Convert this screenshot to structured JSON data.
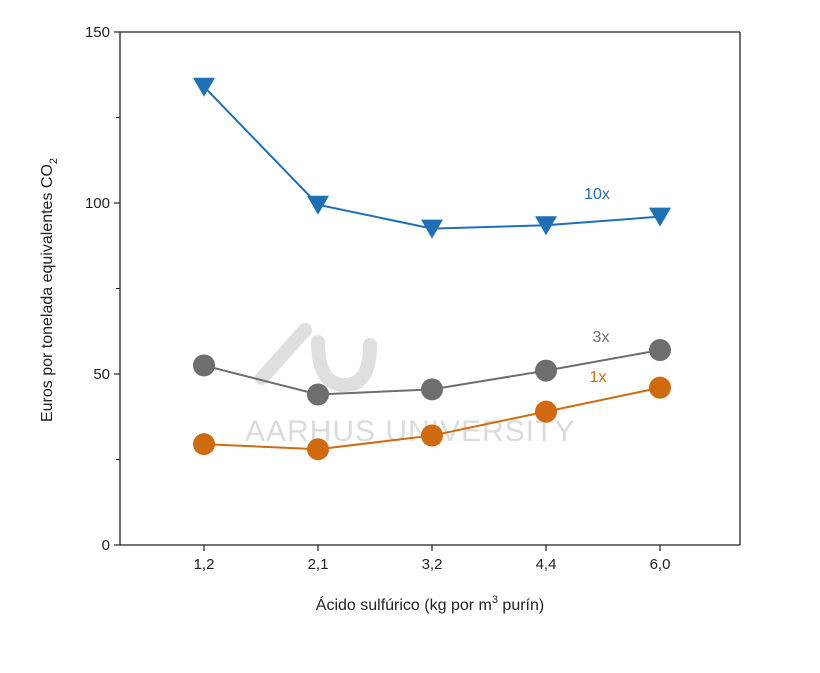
{
  "chart_data": {
    "type": "line",
    "categories": [
      "1,2",
      "2,1",
      "3,2",
      "4,4",
      "6,0"
    ],
    "series": [
      {
        "name": "10x",
        "values": [
          134,
          99.5,
          92.5,
          93.5,
          96
        ],
        "color": "#1f6fb4",
        "marker": "triangle-down"
      },
      {
        "name": "3x",
        "values": [
          52.5,
          44,
          45.5,
          51,
          57
        ],
        "color": "#6e6e6e",
        "marker": "circle"
      },
      {
        "name": "1x",
        "values": [
          29.5,
          28,
          32,
          39,
          46
        ],
        "color": "#d06a10",
        "marker": "circle"
      }
    ],
    "ylim": [
      0,
      150
    ],
    "yticks": [
      0,
      50,
      100,
      150
    ],
    "yminor": [
      25,
      75,
      125
    ],
    "ylabel": "Euros por tonelada equivalentes  CO",
    "ylabel_sub": "2",
    "xlabel_pre": "Ácido sulfúrico (kg por m",
    "xlabel_sup": "3",
    "xlabel_post": " purín)",
    "grid": false,
    "legend": "inline labels"
  },
  "watermark": {
    "text": "AARHUS UNIVERSITY",
    "logo": "au-logo"
  }
}
